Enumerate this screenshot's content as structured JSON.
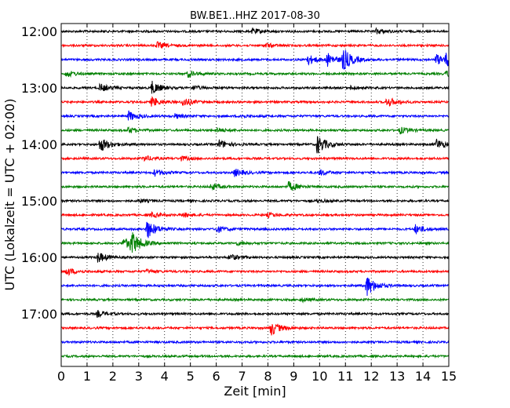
{
  "chart_data": {
    "type": "line",
    "title": "BW.BE1..HHZ 2017-08-30",
    "xlabel": "Zeit  [min]",
    "ylabel": "UTC (Lokalzeit = UTC + 02:00)",
    "xlim": [
      0,
      15
    ],
    "x_ticks": [
      "0",
      "1",
      "2",
      "3",
      "4",
      "5",
      "6",
      "7",
      "8",
      "9",
      "10",
      "11",
      "12",
      "13",
      "14",
      "15"
    ],
    "y_ticks": [
      "12:00",
      "13:00",
      "14:00",
      "15:00",
      "16:00",
      "17:00"
    ],
    "grid": "vertical-dotted",
    "trace_colors": [
      "#000000",
      "#ff0000",
      "#0000ff",
      "#008000"
    ],
    "traces": [
      {
        "start": "12:00",
        "events": [
          [
            7.4,
            0.25
          ],
          [
            12.2,
            0.25
          ]
        ]
      },
      {
        "start": "12:15",
        "events": [
          [
            3.7,
            0.3
          ],
          [
            7.9,
            0.2
          ]
        ]
      },
      {
        "start": "12:30",
        "events": [
          [
            9.5,
            0.5
          ],
          [
            10.3,
            0.6
          ],
          [
            10.9,
            1.0
          ],
          [
            14.5,
            0.5
          ],
          [
            14.9,
            0.6
          ]
        ]
      },
      {
        "start": "12:45",
        "events": [
          [
            0.2,
            0.3
          ],
          [
            4.9,
            0.3
          ],
          [
            14.9,
            0.3
          ]
        ]
      },
      {
        "start": "13:00",
        "events": [
          [
            1.5,
            0.35
          ],
          [
            3.5,
            0.6
          ],
          [
            5.1,
            0.2
          ],
          [
            11.2,
            0.15
          ]
        ]
      },
      {
        "start": "13:15",
        "events": [
          [
            3.5,
            0.45
          ],
          [
            4.7,
            0.4
          ],
          [
            12.6,
            0.45
          ]
        ]
      },
      {
        "start": "13:30",
        "events": [
          [
            2.6,
            0.45
          ],
          [
            4.4,
            0.2
          ],
          [
            6.9,
            0.15
          ]
        ]
      },
      {
        "start": "13:45",
        "events": [
          [
            2.6,
            0.25
          ],
          [
            6.0,
            0.2
          ],
          [
            13.1,
            0.3
          ]
        ]
      },
      {
        "start": "14:00",
        "events": [
          [
            1.5,
            0.7
          ],
          [
            6.1,
            0.4
          ],
          [
            9.9,
            0.9
          ],
          [
            14.5,
            0.5
          ]
        ]
      },
      {
        "start": "14:15",
        "events": [
          [
            3.2,
            0.25
          ],
          [
            4.6,
            0.2
          ]
        ]
      },
      {
        "start": "14:30",
        "events": [
          [
            3.6,
            0.3
          ],
          [
            6.7,
            0.35
          ],
          [
            10.0,
            0.25
          ]
        ]
      },
      {
        "start": "14:45",
        "events": [
          [
            5.8,
            0.3
          ],
          [
            8.8,
            0.45
          ]
        ]
      },
      {
        "start": "15:00",
        "events": [
          [
            3.0,
            0.15
          ],
          [
            9.9,
            0.15
          ]
        ]
      },
      {
        "start": "15:15",
        "events": [
          [
            3.5,
            0.2
          ],
          [
            4.7,
            0.2
          ],
          [
            8.0,
            0.2
          ]
        ]
      },
      {
        "start": "15:30",
        "events": [
          [
            3.3,
            0.9
          ],
          [
            6.0,
            0.3
          ],
          [
            13.7,
            0.4
          ]
        ]
      },
      {
        "start": "15:45",
        "events": [
          [
            2.4,
            0.5
          ],
          [
            2.7,
            1.0
          ],
          [
            6.8,
            0.15
          ]
        ]
      },
      {
        "start": "16:00",
        "events": [
          [
            1.4,
            0.5
          ],
          [
            6.5,
            0.3
          ]
        ]
      },
      {
        "start": "16:15",
        "events": [
          [
            0.2,
            0.35
          ],
          [
            3.3,
            0.15
          ]
        ]
      },
      {
        "start": "16:30",
        "events": [
          [
            11.8,
            1.0
          ]
        ]
      },
      {
        "start": "16:45",
        "events": [
          [
            9.3,
            0.15
          ]
        ]
      },
      {
        "start": "17:00",
        "events": [
          [
            1.4,
            0.3
          ]
        ]
      },
      {
        "start": "17:15",
        "events": [
          [
            8.1,
            0.7
          ]
        ]
      },
      {
        "start": "17:30",
        "events": []
      },
      {
        "start": "17:45",
        "events": []
      }
    ]
  }
}
